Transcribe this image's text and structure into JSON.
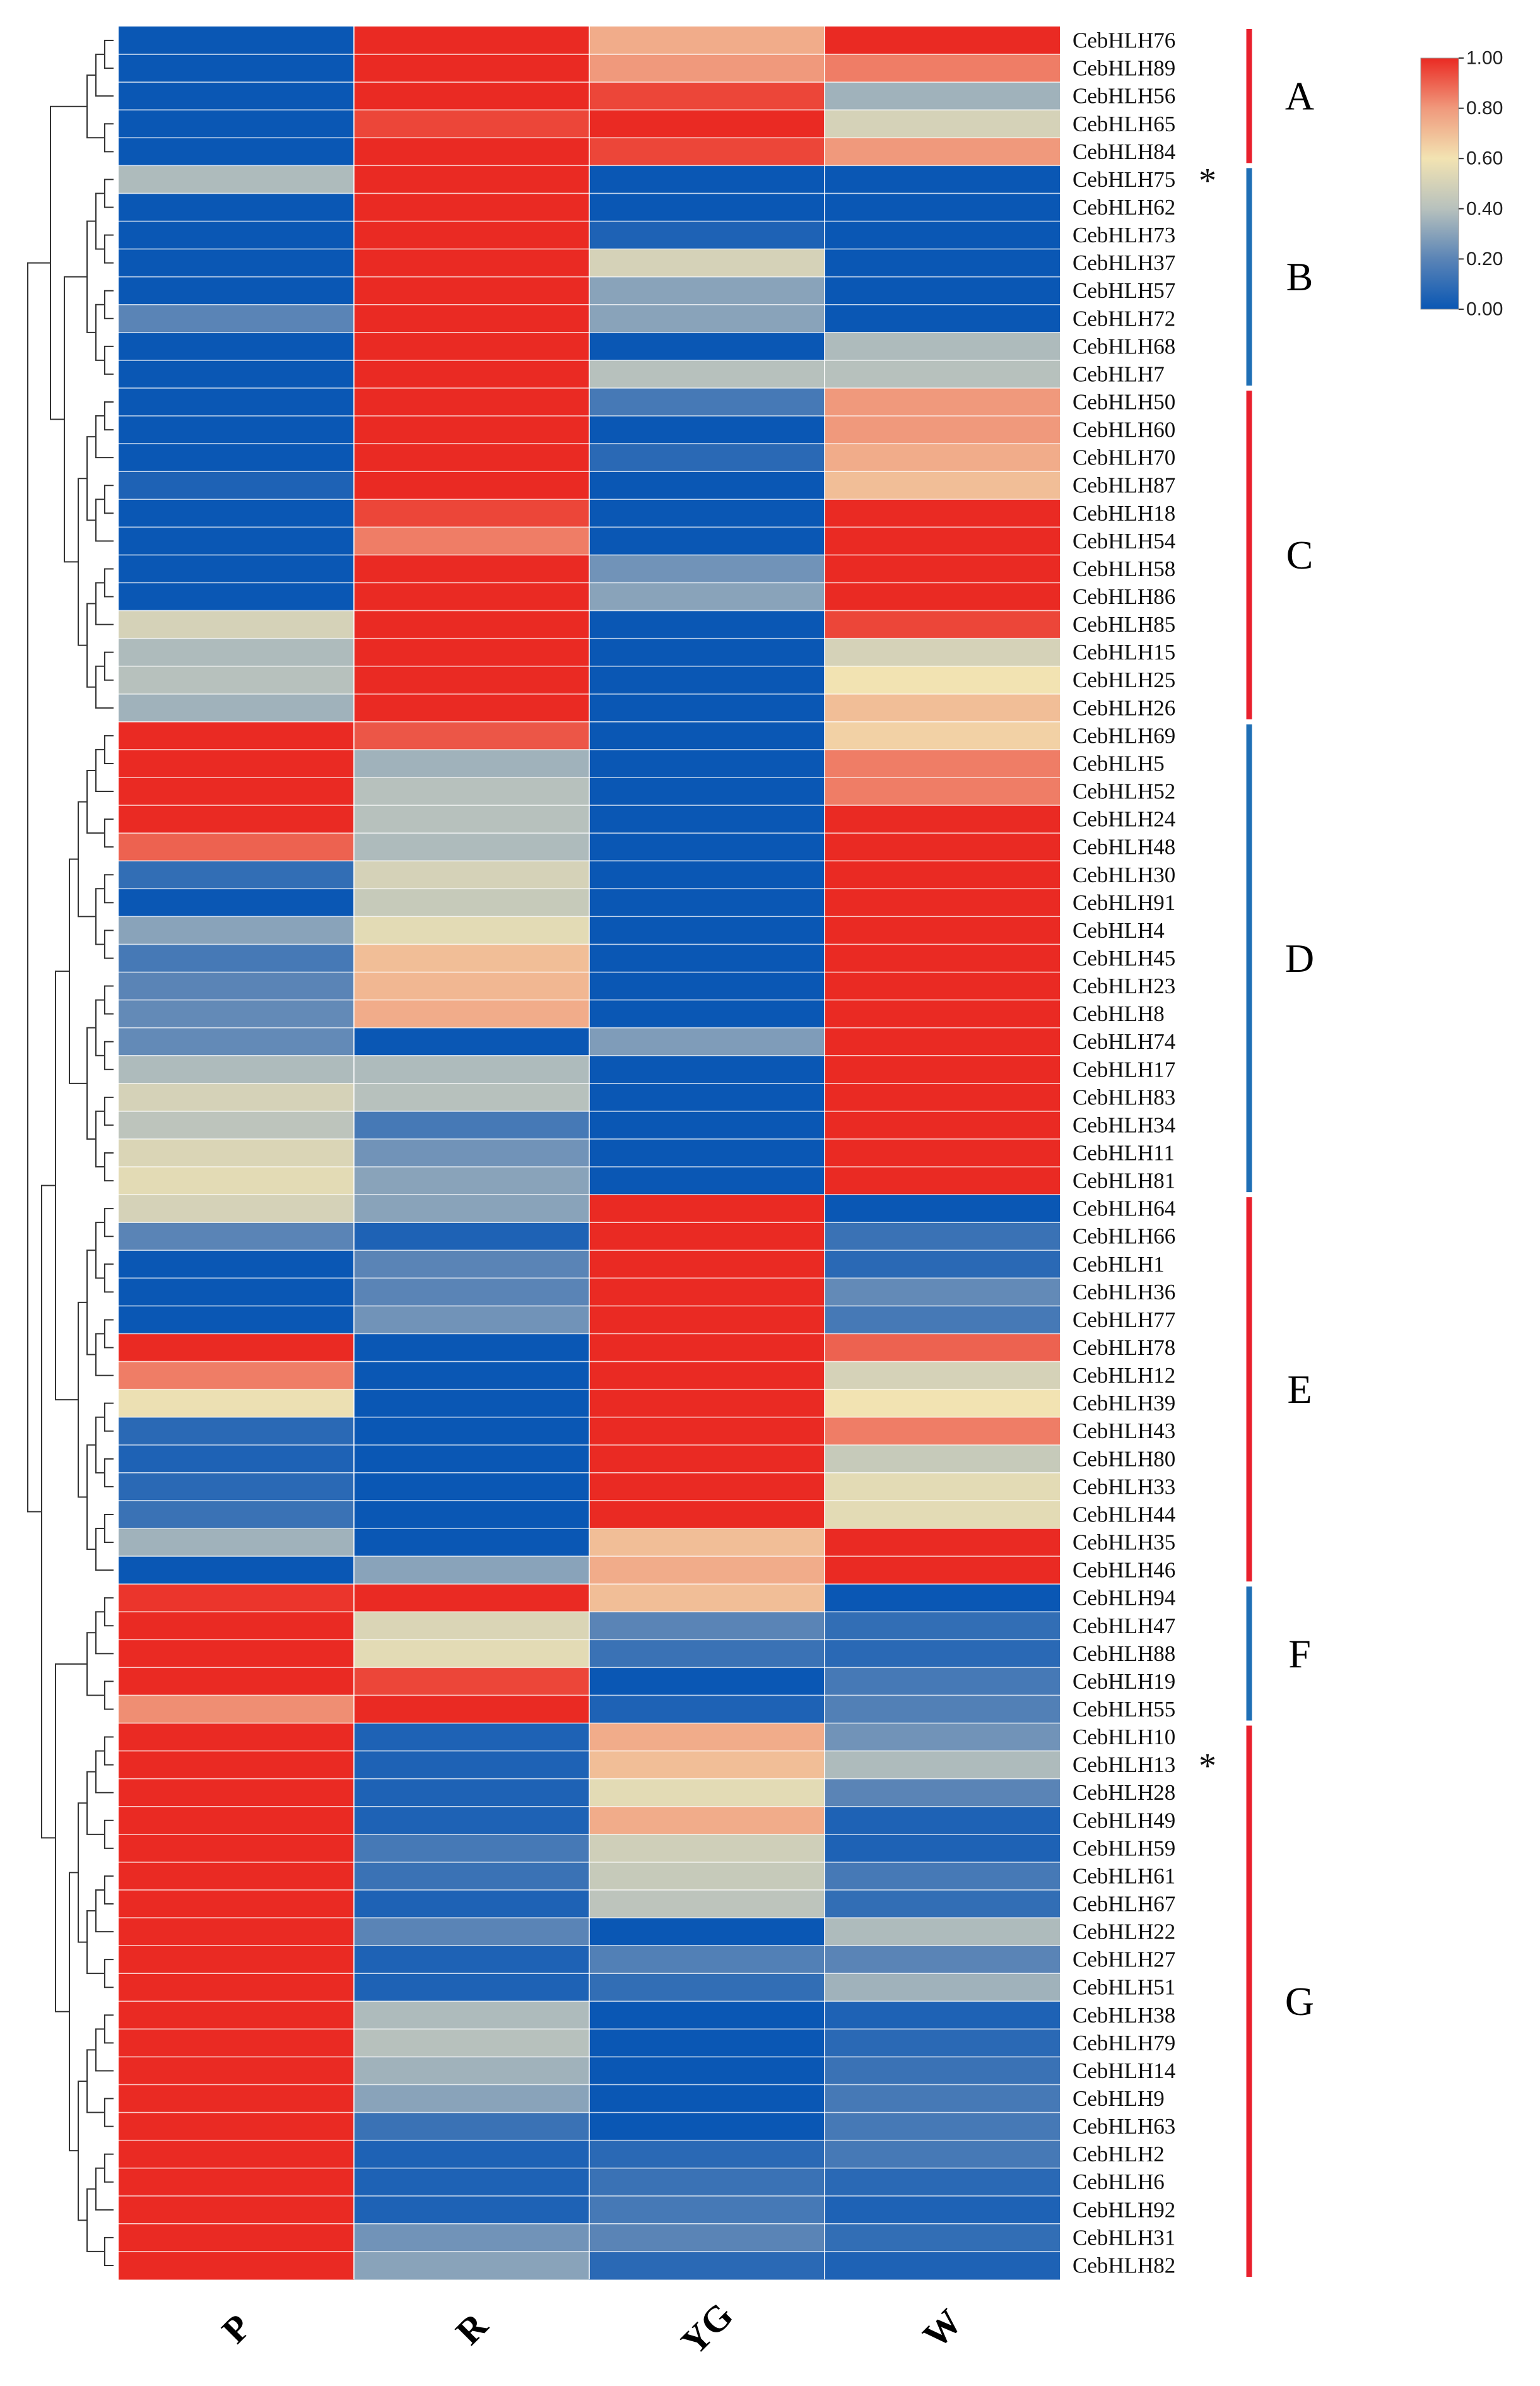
{
  "chart_data": {
    "type": "heatmap",
    "title": "",
    "columns": [
      "P",
      "R",
      "YG",
      "W"
    ],
    "rows": [
      "CebHLH76",
      "CebHLH89",
      "CebHLH56",
      "CebHLH65",
      "CebHLH84",
      "CebHLH75",
      "CebHLH62",
      "CebHLH73",
      "CebHLH37",
      "CebHLH57",
      "CebHLH72",
      "CebHLH68",
      "CebHLH7",
      "CebHLH50",
      "CebHLH60",
      "CebHLH70",
      "CebHLH87",
      "CebHLH18",
      "CebHLH54",
      "CebHLH58",
      "CebHLH86",
      "CebHLH85",
      "CebHLH15",
      "CebHLH25",
      "CebHLH26",
      "CebHLH69",
      "CebHLH5",
      "CebHLH52",
      "CebHLH24",
      "CebHLH48",
      "CebHLH30",
      "CebHLH91",
      "CebHLH4",
      "CebHLH45",
      "CebHLH23",
      "CebHLH8",
      "CebHLH74",
      "CebHLH17",
      "CebHLH83",
      "CebHLH34",
      "CebHLH11",
      "CebHLH81",
      "CebHLH64",
      "CebHLH66",
      "CebHLH1",
      "CebHLH36",
      "CebHLH77",
      "CebHLH78",
      "CebHLH12",
      "CebHLH39",
      "CebHLH43",
      "CebHLH80",
      "CebHLH33",
      "CebHLH44",
      "CebHLH35",
      "CebHLH46",
      "CebHLH94",
      "CebHLH47",
      "CebHLH88",
      "CebHLH19",
      "CebHLH55",
      "CebHLH10",
      "CebHLH13",
      "CebHLH28",
      "CebHLH49",
      "CebHLH59",
      "CebHLH61",
      "CebHLH67",
      "CebHLH22",
      "CebHLH27",
      "CebHLH51",
      "CebHLH38",
      "CebHLH79",
      "CebHLH14",
      "CebHLH9",
      "CebHLH63",
      "CebHLH2",
      "CebHLH6",
      "CebHLH92",
      "CebHLH31",
      "CebHLH82"
    ],
    "values": [
      [
        0.0,
        1.0,
        0.75,
        1.0
      ],
      [
        0.0,
        1.0,
        0.8,
        0.85
      ],
      [
        0.0,
        1.0,
        0.95,
        0.35
      ],
      [
        0.0,
        0.95,
        1.0,
        0.5
      ],
      [
        0.0,
        1.0,
        0.95,
        0.8
      ],
      [
        0.38,
        1.0,
        0.0,
        0.0
      ],
      [
        0.0,
        1.0,
        0.0,
        0.0
      ],
      [
        0.0,
        1.0,
        0.05,
        0.0
      ],
      [
        0.0,
        1.0,
        0.5,
        0.0
      ],
      [
        0.0,
        1.0,
        0.3,
        0.0
      ],
      [
        0.2,
        1.0,
        0.3,
        0.0
      ],
      [
        0.0,
        1.0,
        0.0,
        0.38
      ],
      [
        0.0,
        1.0,
        0.4,
        0.4
      ],
      [
        0.0,
        1.0,
        0.15,
        0.8
      ],
      [
        0.0,
        1.0,
        0.0,
        0.8
      ],
      [
        0.0,
        1.0,
        0.08,
        0.75
      ],
      [
        0.05,
        1.0,
        0.0,
        0.7
      ],
      [
        0.0,
        0.95,
        0.0,
        1.0
      ],
      [
        0.0,
        0.85,
        0.0,
        1.0
      ],
      [
        0.0,
        1.0,
        0.25,
        1.0
      ],
      [
        0.0,
        1.0,
        0.3,
        1.0
      ],
      [
        0.5,
        1.0,
        0.0,
        0.95
      ],
      [
        0.38,
        1.0,
        0.0,
        0.5
      ],
      [
        0.4,
        1.0,
        0.0,
        0.6
      ],
      [
        0.35,
        1.0,
        0.0,
        0.7
      ],
      [
        1.0,
        0.92,
        0.0,
        0.65
      ],
      [
        1.0,
        0.35,
        0.0,
        0.85
      ],
      [
        1.0,
        0.4,
        0.0,
        0.85
      ],
      [
        1.0,
        0.4,
        0.0,
        1.0
      ],
      [
        0.9,
        0.38,
        0.0,
        1.0
      ],
      [
        0.1,
        0.5,
        0.0,
        1.0
      ],
      [
        0.0,
        0.45,
        0.0,
        1.0
      ],
      [
        0.3,
        0.55,
        0.0,
        1.0
      ],
      [
        0.15,
        0.7,
        0.0,
        1.0
      ],
      [
        0.2,
        0.72,
        0.0,
        1.0
      ],
      [
        0.22,
        0.75,
        0.0,
        1.0
      ],
      [
        0.22,
        0.0,
        0.28,
        1.0
      ],
      [
        0.38,
        0.38,
        0.0,
        1.0
      ],
      [
        0.5,
        0.4,
        0.0,
        1.0
      ],
      [
        0.42,
        0.15,
        0.0,
        1.0
      ],
      [
        0.52,
        0.25,
        0.0,
        1.0
      ],
      [
        0.55,
        0.3,
        0.0,
        1.0
      ],
      [
        0.5,
        0.3,
        1.0,
        0.0
      ],
      [
        0.2,
        0.05,
        1.0,
        0.12
      ],
      [
        0.0,
        0.2,
        1.0,
        0.08
      ],
      [
        0.0,
        0.2,
        1.0,
        0.22
      ],
      [
        0.0,
        0.25,
        1.0,
        0.15
      ],
      [
        1.0,
        0.0,
        1.0,
        0.9
      ],
      [
        0.85,
        0.0,
        1.0,
        0.5
      ],
      [
        0.58,
        0.0,
        1.0,
        0.6
      ],
      [
        0.08,
        0.0,
        1.0,
        0.85
      ],
      [
        0.05,
        0.0,
        1.0,
        0.45
      ],
      [
        0.08,
        0.0,
        1.0,
        0.55
      ],
      [
        0.12,
        0.0,
        1.0,
        0.55
      ],
      [
        0.35,
        0.0,
        0.7,
        1.0
      ],
      [
        0.0,
        0.3,
        0.75,
        1.0
      ],
      [
        0.98,
        1.0,
        0.7,
        0.0
      ],
      [
        1.0,
        0.52,
        0.2,
        0.1
      ],
      [
        1.0,
        0.55,
        0.12,
        0.08
      ],
      [
        1.0,
        0.95,
        0.0,
        0.15
      ],
      [
        0.82,
        1.0,
        0.05,
        0.18
      ],
      [
        1.0,
        0.05,
        0.75,
        0.25
      ],
      [
        1.0,
        0.05,
        0.7,
        0.38
      ],
      [
        1.0,
        0.05,
        0.55,
        0.2
      ],
      [
        1.0,
        0.05,
        0.75,
        0.05
      ],
      [
        1.0,
        0.15,
        0.48,
        0.05
      ],
      [
        1.0,
        0.12,
        0.45,
        0.15
      ],
      [
        1.0,
        0.05,
        0.42,
        0.1
      ],
      [
        1.0,
        0.2,
        0.0,
        0.38
      ],
      [
        1.0,
        0.05,
        0.18,
        0.2
      ],
      [
        1.0,
        0.05,
        0.1,
        0.35
      ],
      [
        1.0,
        0.38,
        0.0,
        0.05
      ],
      [
        1.0,
        0.4,
        0.0,
        0.08
      ],
      [
        1.0,
        0.35,
        0.0,
        0.12
      ],
      [
        1.0,
        0.3,
        0.0,
        0.15
      ],
      [
        1.0,
        0.12,
        0.0,
        0.15
      ],
      [
        1.0,
        0.05,
        0.08,
        0.15
      ],
      [
        1.0,
        0.05,
        0.12,
        0.08
      ],
      [
        1.0,
        0.05,
        0.15,
        0.05
      ],
      [
        1.0,
        0.25,
        0.2,
        0.1
      ],
      [
        1.0,
        0.3,
        0.08,
        0.05
      ]
    ],
    "groups": [
      {
        "label": "A",
        "start": 0,
        "end": 4,
        "color": "#e8202d"
      },
      {
        "label": "B",
        "start": 5,
        "end": 12,
        "color": "#1f6fb5"
      },
      {
        "label": "C",
        "start": 13,
        "end": 24,
        "color": "#e8202d"
      },
      {
        "label": "D",
        "start": 25,
        "end": 41,
        "color": "#1f6fb5"
      },
      {
        "label": "E",
        "start": 42,
        "end": 55,
        "color": "#e8202d"
      },
      {
        "label": "F",
        "start": 56,
        "end": 60,
        "color": "#1f6fb5"
      },
      {
        "label": "G",
        "start": 61,
        "end": 80,
        "color": "#e8202d"
      }
    ],
    "marked_rows": [
      "CebHLH75",
      "CebHLH13"
    ],
    "mark_symbol": "*",
    "colorbar": {
      "min": 0.0,
      "max": 1.0,
      "ticks": [
        "0.00",
        "0.20",
        "0.40",
        "0.60",
        "0.80",
        "1.00"
      ],
      "colors": [
        "#0a57b4",
        "#5a84b6",
        "#b7c1bd",
        "#f2e3b2",
        "#f0997c",
        "#ea2a23"
      ]
    },
    "dendrogram": true,
    "grid": false
  }
}
